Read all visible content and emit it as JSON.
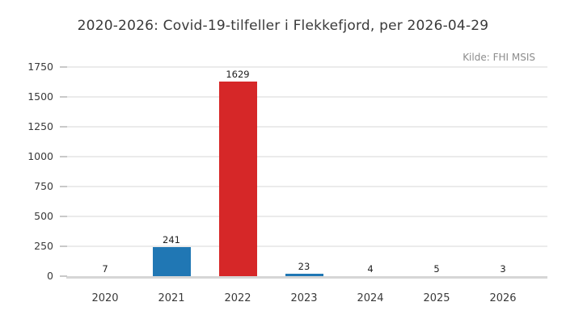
{
  "title": "2020-2026: Covid-19-tilfeller i Flekkefjord, per 2026-04-29",
  "source_note": "Kilde: FHI MSIS",
  "chart_data": {
    "type": "bar",
    "title": "2020-2026: Covid-19-tilfeller i Flekkefjord, per 2026-04-29",
    "annotation": "Kilde: FHI MSIS",
    "categories": [
      "2020",
      "2021",
      "2022",
      "2023",
      "2024",
      "2025",
      "2026"
    ],
    "values": [
      7,
      241,
      1629,
      23,
      4,
      5,
      3
    ],
    "bar_colors": [
      "#2077b4",
      "#2077b4",
      "#d62728",
      "#2077b4",
      "#2077b4",
      "#2077b4",
      "#2077b4"
    ],
    "default_color": "#2077b4",
    "highlight_color": "#d62728",
    "xlabel": "",
    "ylabel": "",
    "ylim": [
      0,
      1750
    ],
    "yticks": [
      0,
      250,
      500,
      750,
      1000,
      1250,
      1500,
      1750
    ],
    "grid": "horizontal",
    "legend": "none",
    "value_labels": true
  }
}
